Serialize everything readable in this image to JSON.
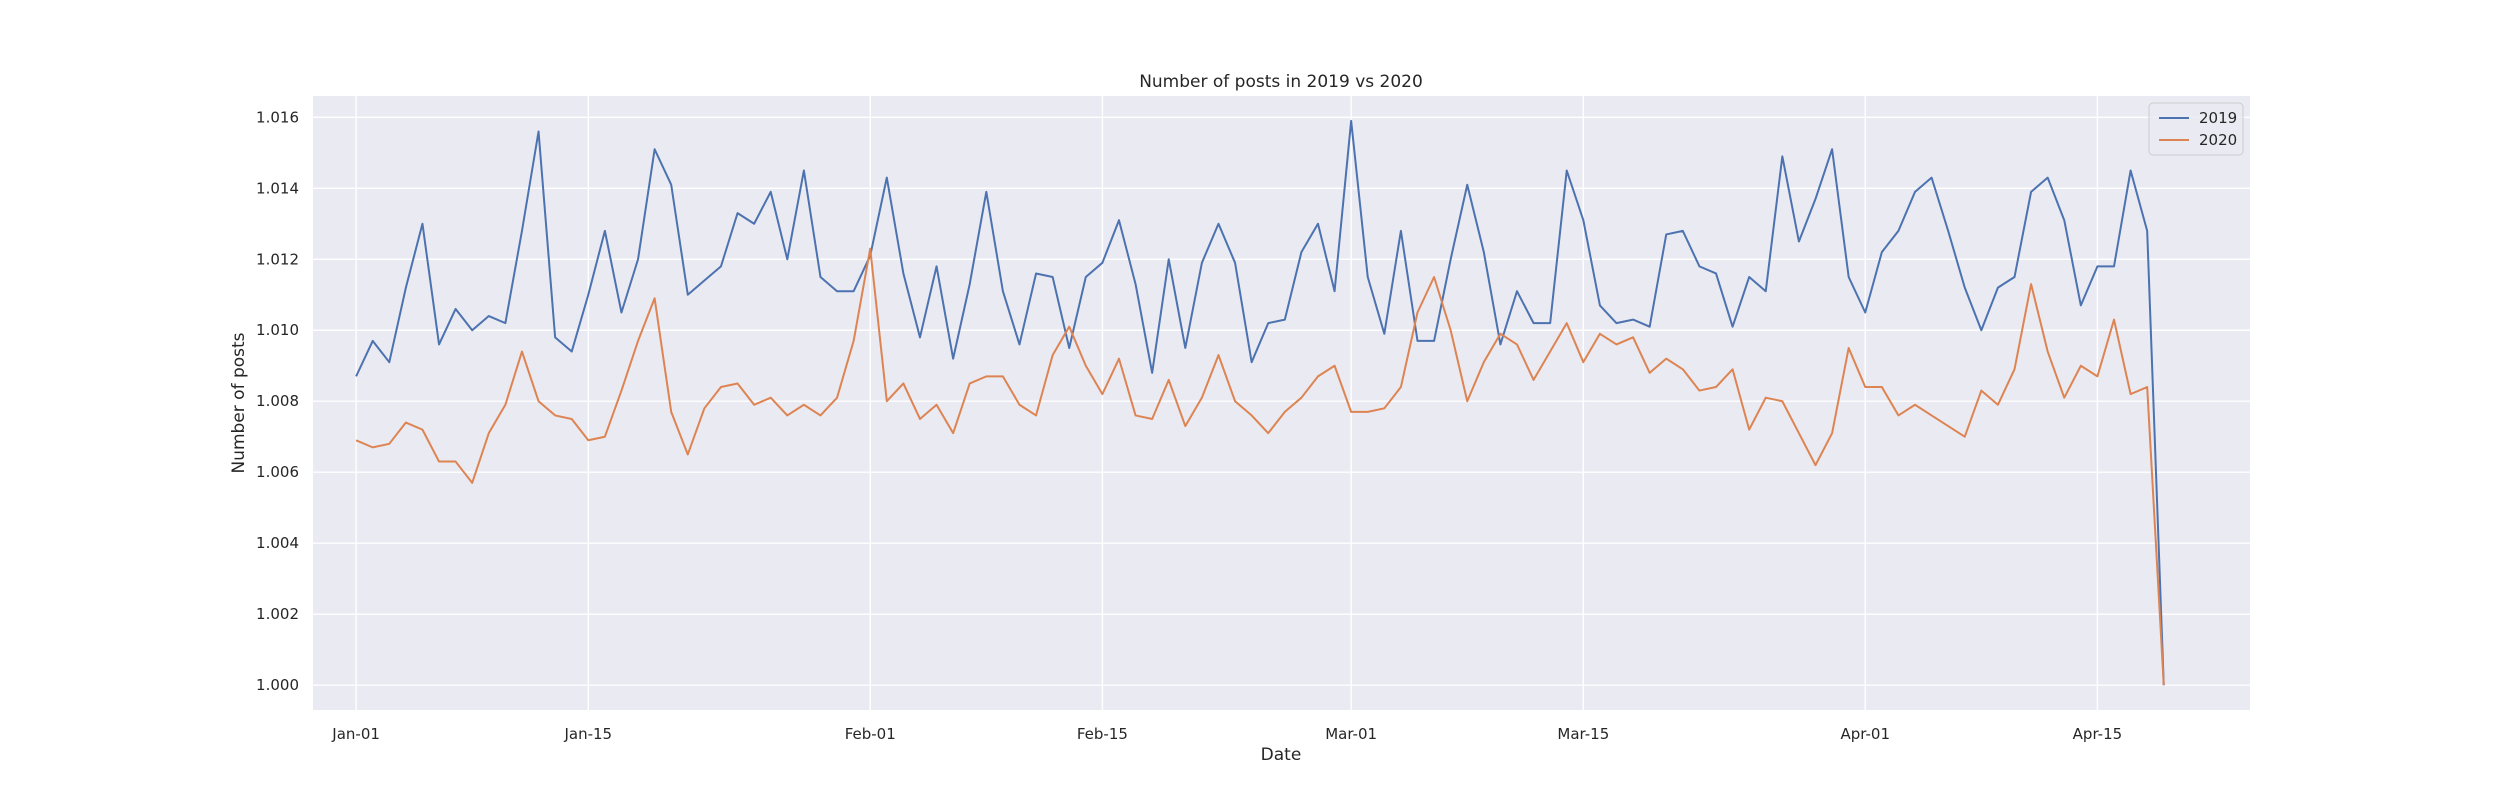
{
  "chart_data": {
    "type": "line",
    "title": "Number of posts in 2019 vs 2020",
    "xlabel": "Date",
    "ylabel": "Number of posts",
    "x_start": "Jan-01",
    "x_tick_labels": [
      "Jan-01",
      "Jan-15",
      "Feb-01",
      "Feb-15",
      "Mar-01",
      "Mar-15",
      "Apr-01",
      "Apr-15"
    ],
    "x_tick_positions": [
      0,
      14,
      31,
      45,
      60,
      74,
      91,
      105
    ],
    "y_ticks": [
      1.0,
      1.002,
      1.004,
      1.006,
      1.008,
      1.01,
      1.012,
      1.014,
      1.016
    ],
    "y_tick_labels": [
      "1.000",
      "1.002",
      "1.004",
      "1.006",
      "1.008",
      "1.010",
      "1.012",
      "1.014",
      "1.016"
    ],
    "xlim": [
      -2.6,
      114.2
    ],
    "ylim": [
      0.9993,
      1.0166
    ],
    "grid": true,
    "legend_position": "top-right",
    "series": [
      {
        "name": "2019",
        "color": "#4c72b0",
        "values": [
          1.0087,
          1.0097,
          1.0091,
          1.0112,
          1.013,
          1.0096,
          1.0106,
          1.01,
          1.0104,
          1.0102,
          1.0128,
          1.0156,
          1.0098,
          1.0094,
          1.011,
          1.0128,
          1.0105,
          1.012,
          1.0151,
          1.0141,
          1.011,
          1.0114,
          1.0118,
          1.0133,
          1.013,
          1.0139,
          1.012,
          1.0145,
          1.0115,
          1.0111,
          1.0111,
          1.0121,
          1.0143,
          1.0116,
          1.0098,
          1.0118,
          1.0092,
          1.0113,
          1.0139,
          1.0111,
          1.0096,
          1.0116,
          1.0115,
          1.0095,
          1.0115,
          1.0119,
          1.0131,
          1.0113,
          1.0088,
          1.012,
          1.0095,
          1.0119,
          1.013,
          1.0119,
          1.0091,
          1.0102,
          1.0103,
          1.0122,
          1.013,
          1.0111,
          1.0159,
          1.0115,
          1.0099,
          1.0128,
          1.0097,
          1.0097,
          1.012,
          1.0141,
          1.0122,
          1.0096,
          1.0111,
          1.0102,
          1.0102,
          1.0145,
          1.0131,
          1.0107,
          1.0102,
          1.0103,
          1.0101,
          1.0127,
          1.0128,
          1.0118,
          1.0116,
          1.0101,
          1.0115,
          1.0111,
          1.0149,
          1.0125,
          1.0137,
          1.0151,
          1.0115,
          1.0105,
          1.0122,
          1.0128,
          1.0139,
          1.0143,
          1.0128,
          1.0112,
          1.01,
          1.0112,
          1.0115,
          1.0139,
          1.0143,
          1.0131,
          1.0107,
          1.0118,
          1.0118,
          1.0145,
          1.0128,
          1.0
        ]
      },
      {
        "name": "2020",
        "color": "#dd8452",
        "values": [
          1.0069,
          1.0067,
          1.0068,
          1.0074,
          1.0072,
          1.0063,
          1.0063,
          1.0057,
          1.0071,
          1.0079,
          1.0094,
          1.008,
          1.0076,
          1.0075,
          1.0069,
          1.007,
          1.0083,
          1.0097,
          1.0109,
          1.0077,
          1.0065,
          1.0078,
          1.0084,
          1.0085,
          1.0079,
          1.0081,
          1.0076,
          1.0079,
          1.0076,
          1.0081,
          1.0097,
          1.0123,
          1.008,
          1.0085,
          1.0075,
          1.0079,
          1.0071,
          1.0085,
          1.0087,
          1.0087,
          1.0079,
          1.0076,
          1.0093,
          1.0101,
          1.009,
          1.0082,
          1.0092,
          1.0076,
          1.0075,
          1.0086,
          1.0073,
          1.0081,
          1.0093,
          1.008,
          1.0076,
          1.0071,
          1.0077,
          1.0081,
          1.0087,
          1.009,
          1.0077,
          1.0077,
          1.0078,
          1.0084,
          1.0105,
          1.0115,
          1.01,
          1.008,
          1.0091,
          1.0099,
          1.0096,
          1.0086,
          1.0094,
          1.0102,
          1.0091,
          1.0099,
          1.0096,
          1.0098,
          1.0088,
          1.0092,
          1.0089,
          1.0083,
          1.0084,
          1.0089,
          1.0072,
          1.0081,
          1.008,
          1.0071,
          1.0062,
          1.0071,
          1.0095,
          1.0084,
          1.0084,
          1.0076,
          1.0079,
          1.0076,
          1.0073,
          1.007,
          1.0083,
          1.0079,
          1.0089,
          1.0113,
          1.0094,
          1.0081,
          1.009,
          1.0087,
          1.0103,
          1.0082,
          1.0084,
          1.0
        ]
      }
    ]
  }
}
